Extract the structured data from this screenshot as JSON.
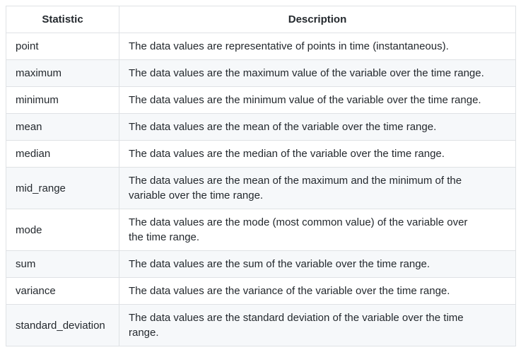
{
  "table": {
    "columns": [
      {
        "label": "Statistic"
      },
      {
        "label": "Description"
      }
    ],
    "rows": [
      {
        "statistic": "point",
        "description": "The data values are representative of points in time (instantaneous)."
      },
      {
        "statistic": "maximum",
        "description": "The data values are the maximum value of the variable over the time range."
      },
      {
        "statistic": "minimum",
        "description": "The data values are the minimum value of the variable over the time range."
      },
      {
        "statistic": "mean",
        "description": "The data values are the mean of the variable over the time range."
      },
      {
        "statistic": "median",
        "description": "The data values are the median of the variable over the time range."
      },
      {
        "statistic": "mid_range",
        "description": "The data values are the mean of the maximum and the minimum of the\nvariable over the time range."
      },
      {
        "statistic": "mode",
        "description": "The data values are the mode (most common value) of the variable over\nthe time range."
      },
      {
        "statistic": "sum",
        "description": "The data values are the sum of the variable over the time range."
      },
      {
        "statistic": "variance",
        "description": "The data values are the variance of the variable over the time range."
      },
      {
        "statistic": "standard_deviation",
        "description": "The data values are the standard deviation of the variable over the time\nrange."
      }
    ]
  },
  "colors": {
    "row_stripe": "#f6f8fa",
    "border": "#dfe2e5",
    "text": "#24292e",
    "background": "#ffffff"
  }
}
